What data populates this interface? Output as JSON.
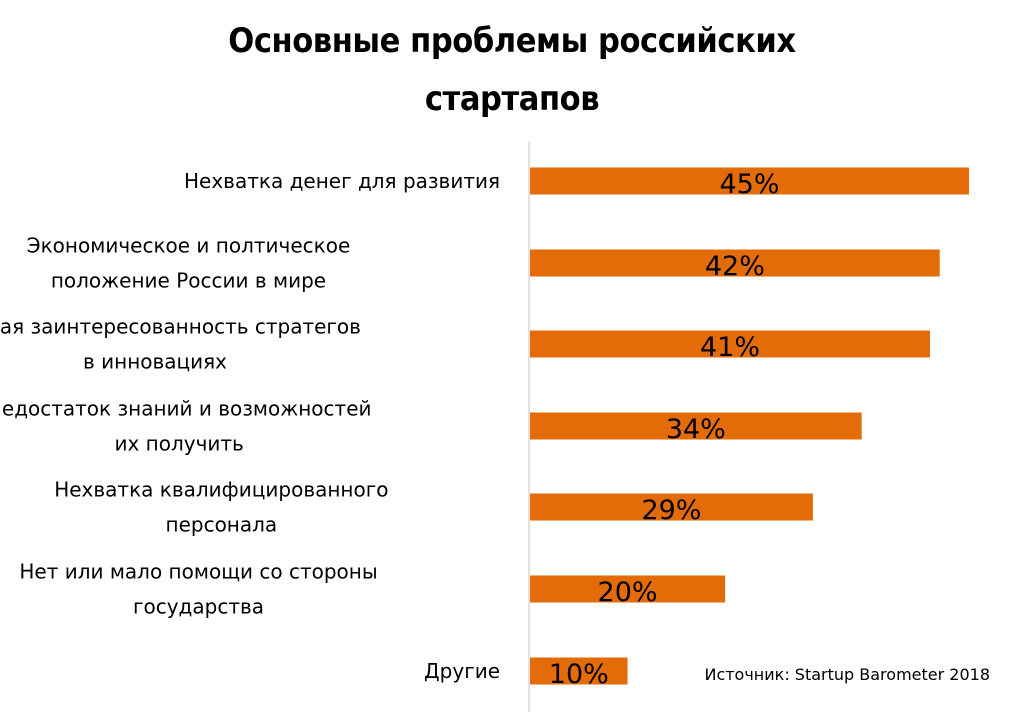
{
  "chart_data": {
    "type": "bar",
    "orientation": "horizontal",
    "title": "Основные проблемы российских стартапов",
    "categories": [
      [
        "Нехватка денег для развития"
      ],
      [
        "Экономическое и полтическое",
        "положение России в мире"
      ],
      [
        "Низкая заинтересованность стратегов",
        "в инновациях"
      ],
      [
        "Недостаток знаний и возможностей",
        "их получить"
      ],
      [
        "Нехватка квалифицированного",
        "персонала"
      ],
      [
        "Нет или мало помощи со стороны",
        "государства"
      ],
      [
        "Другие"
      ]
    ],
    "values": [
      45,
      42,
      41,
      34,
      29,
      20,
      10
    ],
    "value_labels": [
      "45%",
      "42%",
      "41%",
      "34%",
      "29%",
      "20%",
      "10%"
    ],
    "xlim": [
      0,
      45
    ],
    "grid": false,
    "bar_color": "#E36C09",
    "axis_color": "#D9D9D9",
    "source_note": "Источник: Startup Barometer 2018"
  }
}
